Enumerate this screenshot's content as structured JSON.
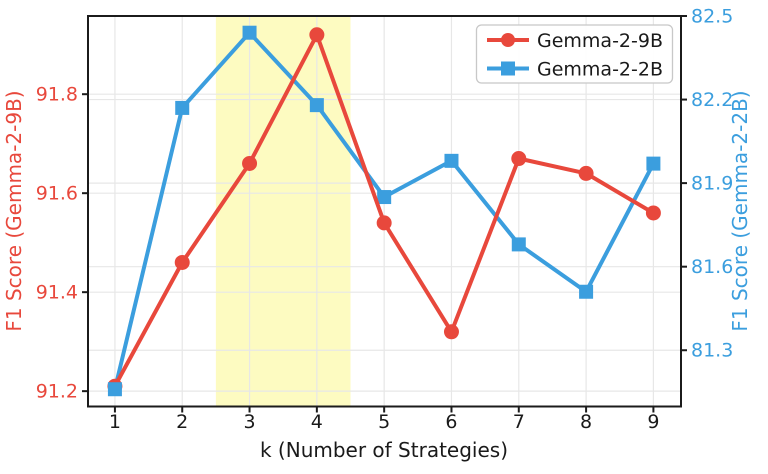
{
  "chart_data": {
    "type": "line",
    "title": "",
    "xlabel": "k (Number of Strategies)",
    "x": [
      1,
      2,
      3,
      4,
      5,
      6,
      7,
      8,
      9
    ],
    "xlim": [
      0.6,
      9.41
    ],
    "xtick_labels": [
      "1",
      "2",
      "3",
      "4",
      "5",
      "6",
      "7",
      "8",
      "9"
    ],
    "grid": true,
    "series": [
      {
        "name": "Gemma-2-9B",
        "axis": "left",
        "color": "#e8483c",
        "marker": "circle",
        "values": [
          91.21,
          91.46,
          91.66,
          91.92,
          91.54,
          91.32,
          91.67,
          91.64,
          91.56
        ]
      },
      {
        "name": "Gemma-2-2B",
        "axis": "right",
        "color": "#3b9ede",
        "marker": "square",
        "values": [
          81.16,
          82.17,
          82.44,
          82.18,
          81.85,
          81.98,
          81.68,
          81.51,
          81.97
        ]
      }
    ],
    "left_axis": {
      "label": "F1 Score (Gemma-2-9B)",
      "color": "#e8483c",
      "ticks": [
        91.2,
        91.4,
        91.6,
        91.8
      ],
      "tick_labels": [
        "91.2",
        "91.4",
        "91.6",
        "91.8"
      ],
      "lim": [
        91.169,
        91.958
      ]
    },
    "right_axis": {
      "label": "F1 Score (Gemma-2-2B)",
      "color": "#3b9ede",
      "ticks": [
        81.3,
        81.6,
        81.9,
        82.2,
        82.5
      ],
      "tick_labels": [
        "81.3",
        "81.6",
        "81.9",
        "82.2",
        "82.5"
      ],
      "lim": [
        81.098,
        82.5
      ]
    },
    "highlight_band": {
      "x0": 2.5,
      "x1": 4.5,
      "color": "#fdfbc1"
    },
    "legend": {
      "position": "top-right",
      "entries": [
        "Gemma-2-9B",
        "Gemma-2-2B"
      ]
    },
    "style": {
      "grid_color": "#e7e7e7",
      "spine_color": "#1b1b1b",
      "x_tick_label_color": "#1a1a1a",
      "background": "#ffffff"
    }
  }
}
